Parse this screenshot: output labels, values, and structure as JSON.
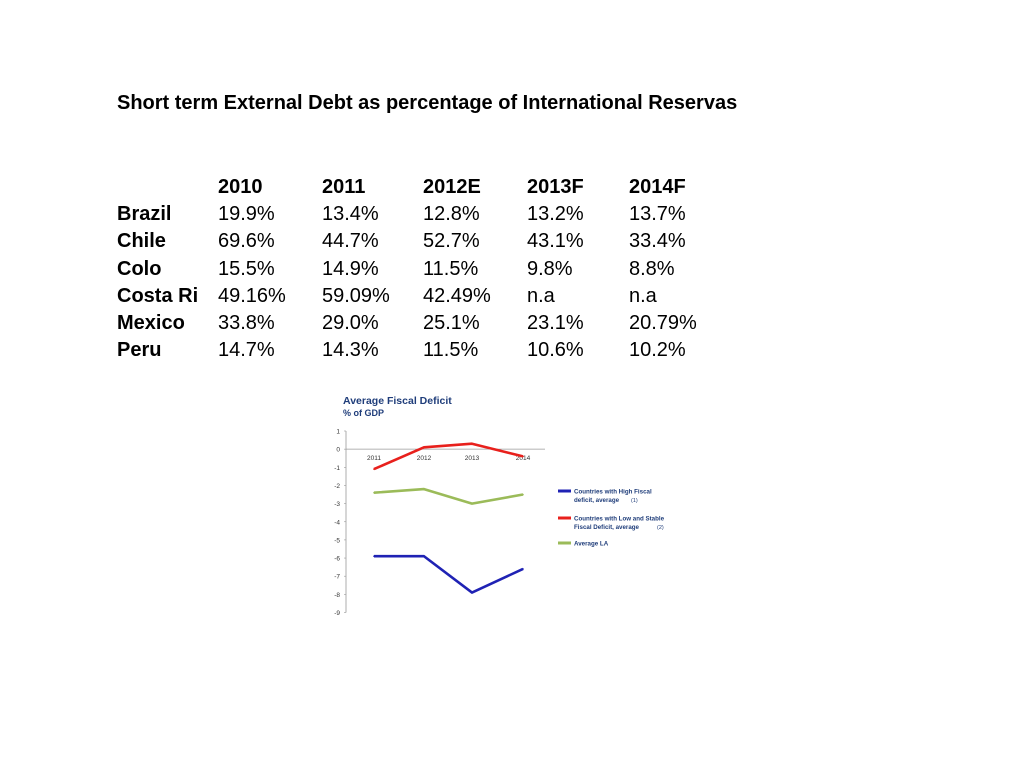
{
  "title": "Short term External Debt as percentage of International Reservas",
  "table": {
    "headers": [
      "",
      "2010",
      "2011",
      "2012E",
      "2013F",
      "2014F"
    ],
    "rows": [
      {
        "country": "Brazil",
        "values": [
          "19.9%",
          "13.4%",
          "12.8%",
          "13.2%",
          "13.7%"
        ]
      },
      {
        "country": "Chile",
        "values": [
          "69.6%",
          "44.7%",
          "52.7%",
          "43.1%",
          "33.4%"
        ]
      },
      {
        "country": "Colo",
        "values": [
          "15.5%",
          "14.9%",
          "11.5%",
          "9.8%",
          "8.8%"
        ]
      },
      {
        "country": "Costa Ri",
        "values": [
          "49.16%",
          "59.09%",
          "42.49%",
          "n.a",
          "n.a"
        ]
      },
      {
        "country": "Mexico",
        "values": [
          "33.8%",
          "29.0%",
          "25.1%",
          "23.1%",
          "20.79%"
        ]
      },
      {
        "country": "Peru",
        "values": [
          "14.7%",
          "14.3%",
          "11.5%",
          "10.6%",
          "10.2%"
        ]
      }
    ]
  },
  "chart_data": {
    "type": "line",
    "title": "Average Fiscal Deficit",
    "subtitle": "% of GDP",
    "x": [
      "2011",
      "2012",
      "2013",
      "2014"
    ],
    "ylim": [
      -9,
      1
    ],
    "yticks": [
      1,
      0,
      -1,
      -2,
      -3,
      -4,
      -5,
      -6,
      -7,
      -8,
      -9
    ],
    "grid": false,
    "legend_position": "right",
    "series": [
      {
        "name": "Countries with High Fiscal deficit, average",
        "note": "(1)",
        "color": "#1f22b4",
        "values": [
          -5.9,
          -5.9,
          -7.9,
          -6.6
        ]
      },
      {
        "name": "Countries with Low and Stable Fiscal Deficit, average",
        "note": "(2)",
        "color": "#e8201c",
        "values": [
          -1.1,
          0.1,
          0.3,
          -0.4
        ]
      },
      {
        "name": "Average LA",
        "note": "",
        "color": "#9bbb59",
        "values": [
          -2.4,
          -2.2,
          -3.0,
          -2.5
        ]
      }
    ],
    "legend_lines": [
      [
        "Countries with High Fiscal",
        "deficit, average"
      ],
      [
        "Countries with Low and Stable",
        "Fiscal Deficit, average"
      ],
      [
        "Average LA"
      ]
    ]
  }
}
